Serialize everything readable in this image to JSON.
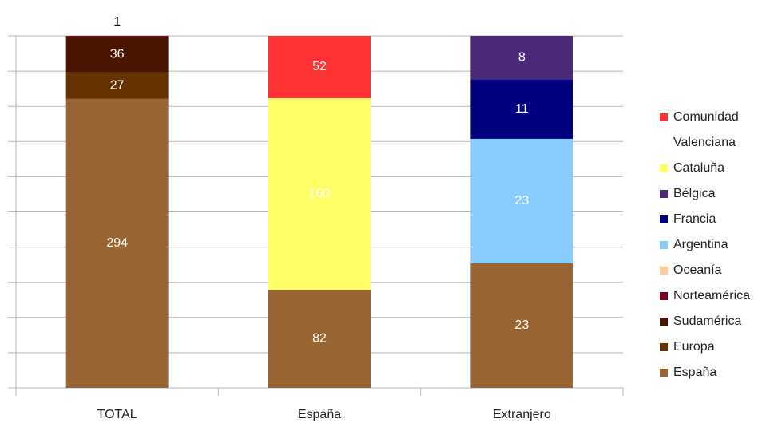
{
  "chart_data": {
    "type": "bar",
    "stacking": "percent",
    "grid": true,
    "legend": "right",
    "categories": [
      "TOTAL",
      "España",
      "Extranjero"
    ],
    "series": [
      {
        "name": "Comunidad Valenciana",
        "color": "#ff3333",
        "values": [
          null,
          52,
          null
        ]
      },
      {
        "name": "Cataluña",
        "color": "#ffff66",
        "values": [
          null,
          160,
          null
        ]
      },
      {
        "name": "Bélgica",
        "color": "#4b2a7a",
        "values": [
          null,
          null,
          8
        ]
      },
      {
        "name": "Francia",
        "color": "#000080",
        "values": [
          null,
          null,
          11
        ]
      },
      {
        "name": "Argentina",
        "color": "#87cbff",
        "values": [
          null,
          null,
          23
        ]
      },
      {
        "name": "Oceanía",
        "color": "#ffcc99",
        "values": [
          null,
          null,
          null
        ]
      },
      {
        "name": "Norteamérica",
        "color": "#800020",
        "values": [
          1,
          null,
          null
        ]
      },
      {
        "name": "Sudamérica",
        "color": "#4a1500",
        "values": [
          36,
          null,
          null
        ]
      },
      {
        "name": "Europa",
        "color": "#663300",
        "values": [
          27,
          null,
          null
        ]
      },
      {
        "name": "España",
        "color": "#996633",
        "values": [
          294,
          82,
          23
        ]
      }
    ]
  }
}
